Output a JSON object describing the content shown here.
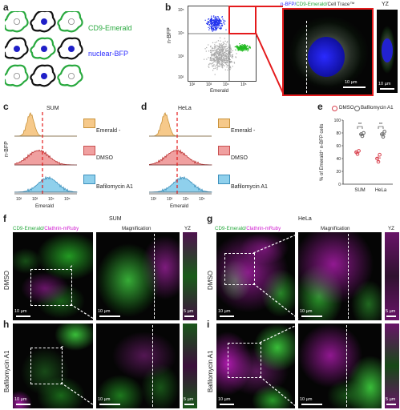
{
  "panels": {
    "a": {
      "letter": "a",
      "label_top": "CD9-Emerald",
      "label_bottom": "nuclear-BFP"
    },
    "b": {
      "letter": "b",
      "ylabel": "n-BFP",
      "xlabel": "Emerald",
      "yticks": [
        "10⁵",
        "10⁴",
        "10³",
        "10²"
      ],
      "xticks": [
        "10²",
        "10³",
        "10⁴",
        "10⁵"
      ],
      "image_title_blue": "n-BFP/",
      "image_title_green": "CD9-Emerald/",
      "image_title_white": "Cell Trace™",
      "yz_label": "YZ",
      "scale_main": "10 µm",
      "scale_yz": "10 µm"
    },
    "c": {
      "letter": "c",
      "title": "SUM",
      "ylabel": "n-BFP",
      "xlabel": "Emerald",
      "xticks": [
        "10²",
        "10³",
        "10⁴",
        "10⁵"
      ]
    },
    "d": {
      "letter": "d",
      "title": "HeLa",
      "xticks": [
        "10²",
        "10³",
        "10⁴",
        "10⁵"
      ],
      "xlabel": "Emerald"
    },
    "legend_cd": {
      "emerald_neg": "Emerald -",
      "dmso": "DMSO",
      "baf": "Bafilomycin A1"
    },
    "e": {
      "letter": "e",
      "legend_dmso": "DMSO",
      "legend_baf": "Bafilomycin A1",
      "ylabel": "% of Emerald⁺ n-BFP cells",
      "yticks": [
        "100",
        "80",
        "60",
        "40",
        "20",
        "0"
      ],
      "categories": [
        "SUM",
        "HeLa"
      ],
      "sig": "**"
    },
    "f": {
      "letter": "f",
      "title": "SUM",
      "channel_green": "CD9-Emerald/",
      "channel_mag": "Clathrin-mRuby",
      "magnification": "Magnification",
      "yz": "YZ",
      "row_label": "DMSO",
      "scale1": "10 µm",
      "scale2": "10 µm",
      "scale3": "5 µm"
    },
    "g": {
      "letter": "g",
      "title": "HeLa",
      "channel_green": "CD9-Emerald/",
      "channel_mag": "Clathrin-mRuby",
      "magnification": "Magnification",
      "yz": "YZ",
      "row_label": "DMSO",
      "scale1": "10 µm",
      "scale2": "10 µm",
      "scale3": "5 µm"
    },
    "h": {
      "letter": "h",
      "row_label": "Bafilomycin A1",
      "scale1": "10 µm",
      "scale2": "10 µm",
      "scale3": "5 µm"
    },
    "i": {
      "letter": "i",
      "row_label": "Bafilomycin A1",
      "scale1": "10 µm",
      "scale2": "10 µm",
      "scale3": "5 µm"
    }
  },
  "chart_data": [
    {
      "type": "scatter",
      "panel": "e",
      "categories": [
        "SUM",
        "HeLa"
      ],
      "series": [
        {
          "name": "DMSO",
          "values": [
            [
              50,
              47,
              52
            ],
            [
              40,
              35,
              46
            ]
          ],
          "mean": [
            50,
            41
          ]
        },
        {
          "name": "Bafilomycin A1",
          "values": [
            [
              78,
              75,
              80
            ],
            [
              78,
              74,
              82
            ]
          ],
          "mean": [
            78,
            78
          ]
        }
      ],
      "ylabel": "% of Emerald⁺ n-BFP cells",
      "ylim": [
        0,
        100
      ],
      "colors": {
        "DMSO": "#d9424f",
        "Bafilomycin A1": "#666666"
      }
    }
  ],
  "colors": {
    "green": "#29a93f",
    "blue": "#2c2cff",
    "magenta": "#d01ad0",
    "orange_fill": "#f6c98a",
    "red_fill": "#f0a0a0",
    "cyan_fill": "#8fd0ec"
  }
}
